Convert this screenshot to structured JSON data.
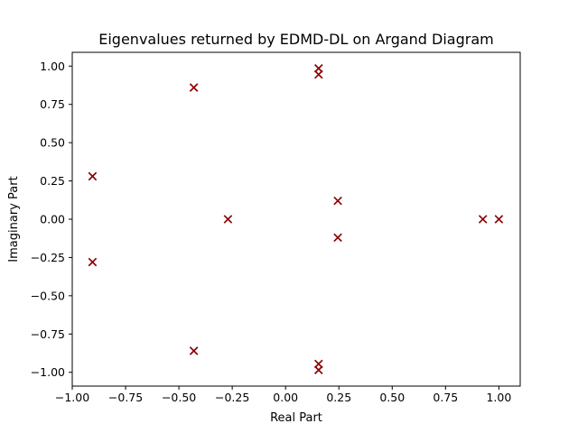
{
  "chart_data": {
    "type": "scatter",
    "title": "Eigenvalues returned by EDMD-DL on Argand Diagram",
    "xlabel": "Real Part",
    "ylabel": "Imaginary Part",
    "xlim": [
      -1.0,
      1.1
    ],
    "ylim": [
      -1.09,
      1.09
    ],
    "xticks": [
      -1.0,
      -0.75,
      -0.5,
      -0.25,
      0.0,
      0.25,
      0.5,
      0.75,
      1.0
    ],
    "xtick_labels": [
      "−1.00",
      "−0.75",
      "−0.50",
      "−0.25",
      "0.00",
      "0.25",
      "0.50",
      "0.75",
      "1.00"
    ],
    "yticks": [
      -1.0,
      -0.75,
      -0.5,
      -0.25,
      0.0,
      0.25,
      0.5,
      0.75,
      1.0
    ],
    "ytick_labels": [
      "−1.00",
      "−0.75",
      "−0.50",
      "−0.25",
      "0.00",
      "0.25",
      "0.50",
      "0.75",
      "1.00"
    ],
    "grid": false,
    "marker": "x",
    "marker_color": "#8b0000",
    "points": [
      {
        "x": 0.155,
        "y": 0.985
      },
      {
        "x": 0.155,
        "y": 0.945
      },
      {
        "x": -0.43,
        "y": 0.86
      },
      {
        "x": -0.905,
        "y": 0.28
      },
      {
        "x": 0.245,
        "y": 0.12
      },
      {
        "x": -0.27,
        "y": 0.0
      },
      {
        "x": 0.925,
        "y": 0.0
      },
      {
        "x": 1.0,
        "y": 0.0
      },
      {
        "x": 0.245,
        "y": -0.12
      },
      {
        "x": -0.905,
        "y": -0.28
      },
      {
        "x": -0.43,
        "y": -0.86
      },
      {
        "x": 0.155,
        "y": -0.945
      },
      {
        "x": 0.155,
        "y": -0.985
      }
    ]
  }
}
